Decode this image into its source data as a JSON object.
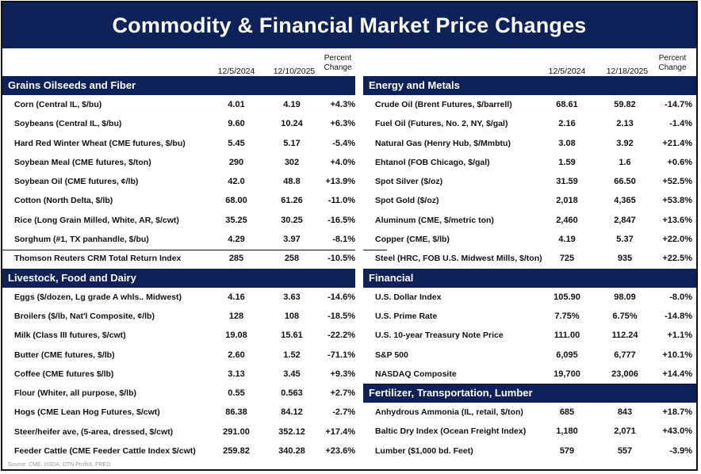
{
  "title": "Commodity & Financial Market Price Changes",
  "columns": {
    "left": {
      "date1": "12/5/2024",
      "date2": "12/10/2025",
      "pct": "Percent Change"
    },
    "right": {
      "date1": "12/5/2024",
      "date2": "12/18/2025",
      "pct": "Percent Change"
    }
  },
  "left_sections": [
    {
      "name": "Grains Oilseeds and Fiber",
      "rows": [
        {
          "label": "Corn (Central IL, $/bu)",
          "v1": "4.01",
          "v2": "4.19",
          "pct": "+4.3%"
        },
        {
          "label": "Soybeans (Central IL, $/bu)",
          "v1": "9.60",
          "v2": "10.24",
          "pct": "+6.3%"
        },
        {
          "label": "Hard Red Winter Wheat (CME futures, $/bu)",
          "v1": "5.45",
          "v2": "5.17",
          "pct": "-5.4%"
        },
        {
          "label": "Soybean Meal (CME futures, $/ton)",
          "v1": "290",
          "v2": "302",
          "pct": "+4.0%"
        },
        {
          "label": "Soybean Oil (CME futures, ¢/lb)",
          "v1": "42.0",
          "v2": "48.8",
          "pct": "+13.9%"
        },
        {
          "label": "Cotton (North Delta, $/lb)",
          "v1": "68.00",
          "v2": "61.26",
          "pct": "-11.0%"
        },
        {
          "label": "Rice (Long Grain Milled, White, AR, $/cwt)",
          "v1": "35.25",
          "v2": "30.25",
          "pct": "-16.5%"
        },
        {
          "label": "Sorghum (#1, TX panhandle, $/bu)",
          "v1": "4.29",
          "v2": "3.97",
          "pct": "-8.1%"
        },
        {
          "label": "Thomson Reuters CRM Total Return Index",
          "v1": "285",
          "v2": "258",
          "pct": "-10.5%"
        }
      ]
    },
    {
      "name": "Livestock, Food and Dairy",
      "rows": [
        {
          "label": "Eggs ($/dozen, Lg grade A whls.. Midwest)",
          "v1": "4.16",
          "v2": "3.63",
          "pct": "-14.6%"
        },
        {
          "label": "Broilers ($/lb, Nat'l Composite, ¢/lb)",
          "v1": "128",
          "v2": "108",
          "pct": "-18.5%"
        },
        {
          "label": "Milk (Class III futures, $/cwt)",
          "v1": "19.08",
          "v2": "15.61",
          "pct": "-22.2%"
        },
        {
          "label": "Butter (CME futures, $/lb)",
          "v1": "2.60",
          "v2": "1.52",
          "pct": "-71.1%"
        },
        {
          "label": "Coffee (CME futures $/lb)",
          "v1": "3.13",
          "v2": "3.45",
          "pct": "+9.3%"
        },
        {
          "label": "Flour (Whiter, all purpose, $/lb)",
          "v1": "0.55",
          "v2": "0.563",
          "pct": "+2.7%"
        },
        {
          "label": "Hogs (CME Lean Hog Futures, $/cwt)",
          "v1": "86.38",
          "v2": "84.12",
          "pct": "-2.7%"
        },
        {
          "label": "Steer/heifer ave, (5-area, dressed, $/cwt)",
          "v1": "291.00",
          "v2": "352.12",
          "pct": "+17.4%"
        },
        {
          "label": "Feeder Cattle (CME Feeder Cattle Index $/cwt)",
          "v1": "259.82",
          "v2": "340.28",
          "pct": "+23.6%"
        }
      ]
    }
  ],
  "right_sections": [
    {
      "name": "Energy and Metals",
      "rows": [
        {
          "label": "Crude Oil (Brent Futures, $/barrell)",
          "v1": "68.61",
          "v2": "59.82",
          "pct": "-14.7%"
        },
        {
          "label": "Fuel Oil (Futures, No. 2, NY, $/gal)",
          "v1": "2.16",
          "v2": "2.13",
          "pct": "-1.4%"
        },
        {
          "label": "Natural Gas (Henry Hub, $/Mmbtu)",
          "v1": "3.08",
          "v2": "3.92",
          "pct": "+21.4%"
        },
        {
          "label": "Ehtanol (FOB Chicago, $/gal)",
          "v1": "1.59",
          "v2": "1.6",
          "pct": "+0.6%"
        },
        {
          "label": "Spot Silver ($/oz)",
          "v1": "31.59",
          "v2": "66.50",
          "pct": "+52.5%"
        },
        {
          "label": "Spot Gold ($/oz)",
          "v1": "2,018",
          "v2": "4,365",
          "pct": "+53.8%"
        },
        {
          "label": "Aluminum (CME, $/metric ton)",
          "v1": "2,460",
          "v2": "2,847",
          "pct": "+13.6%"
        },
        {
          "label": "Copper (CME, $/lb)",
          "v1": "4.19",
          "v2": "5.37",
          "pct": "+22.0%"
        },
        {
          "label": "Steel (HRC, FOB U.S. Midwest Mills, $/ton)",
          "v1": "725",
          "v2": "935",
          "pct": "+22.5%"
        }
      ]
    },
    {
      "name": "Financial",
      "rows": [
        {
          "label": "U.S. Dollar Index",
          "v1": "105.90",
          "v2": "98.09",
          "pct": "-8.0%"
        },
        {
          "label": "U.S. Prime Rate",
          "v1": "7.75%",
          "v2": "6.75%",
          "pct": "-14.8%"
        },
        {
          "label": "U.S. 10-year Treasury Note Price",
          "v1": "111.00",
          "v2": "112.24",
          "pct": "+1.1%"
        },
        {
          "label": "S&P 500",
          "v1": "6,095",
          "v2": "6,777",
          "pct": "+10.1%"
        },
        {
          "label": "NASDAQ Composite",
          "v1": "19,700",
          "v2": "23,006",
          "pct": "+14.4%"
        }
      ]
    },
    {
      "name": "Fertilizer, Transportation, Lumber",
      "rows": [
        {
          "label": "Anhydrous Ammonia (IL, retail, $/ton)",
          "v1": "685",
          "v2": "843",
          "pct": "+18.7%"
        },
        {
          "label": "Baltic Dry Index (Ocean Freight Index)",
          "v1": "1,180",
          "v2": "2,071",
          "pct": "+43.0%"
        },
        {
          "label": "Lumber ($1,000 bd. Feet)",
          "v1": "579",
          "v2": "557",
          "pct": "-3.9%"
        }
      ]
    }
  ],
  "source": "Source: CME, USDA, DTN ProfitX, FRED",
  "colors": {
    "navy": "#0e2158"
  }
}
